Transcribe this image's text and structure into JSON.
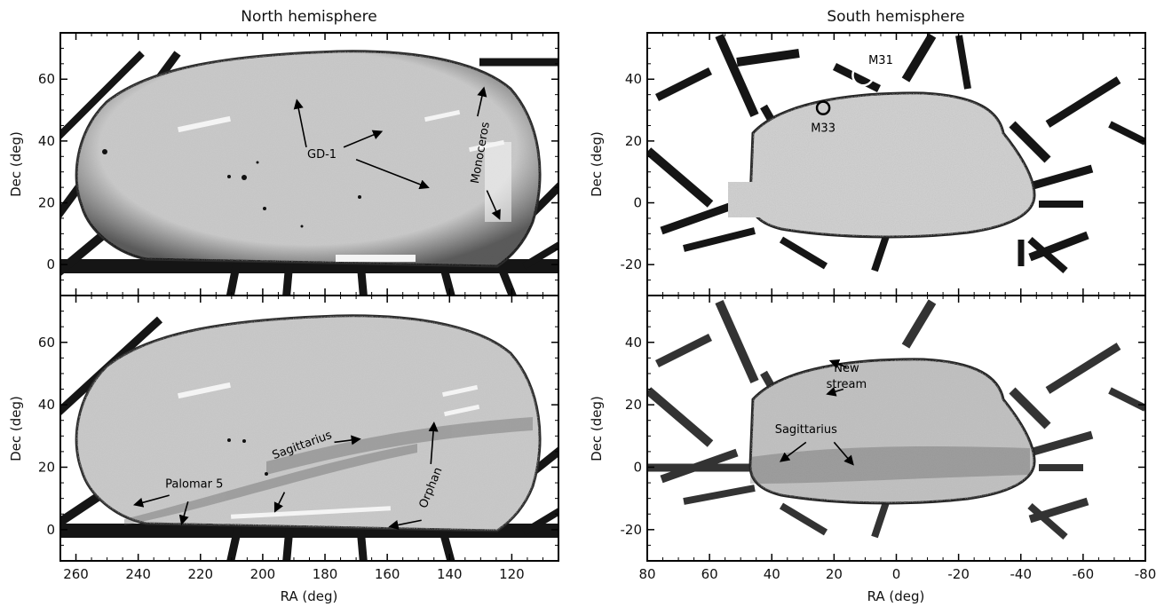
{
  "chart_data": [
    {
      "type": "scatter",
      "panel": "north-top",
      "title": "North hemisphere",
      "xlabel": "",
      "ylabel": "Dec (deg)",
      "xlim": [
        265,
        105
      ],
      "ylim": [
        -10,
        75
      ],
      "xticks": [],
      "yticks": [
        0,
        20,
        40,
        60
      ],
      "grid": false,
      "annotations": [
        {
          "text": "GD-1",
          "x": 181,
          "y": 34.5
        },
        {
          "text": "Monoceros",
          "x": 129,
          "y": 36,
          "rotation": -80
        }
      ],
      "arrows": [
        {
          "from": [
            186,
            38
          ],
          "to": [
            189,
            53
          ]
        },
        {
          "from": [
            174,
            38
          ],
          "to": [
            162,
            43
          ]
        },
        {
          "from": [
            170,
            34
          ],
          "to": [
            147,
            25
          ]
        },
        {
          "from": [
            131,
            48
          ],
          "to": [
            129,
            57
          ]
        },
        {
          "from": [
            128,
            24
          ],
          "to": [
            124,
            15
          ]
        }
      ]
    },
    {
      "type": "scatter",
      "panel": "north-bottom",
      "title": "",
      "xlabel": "RA (deg)",
      "ylabel": "Dec (deg)",
      "xlim": [
        265,
        105
      ],
      "ylim": [
        -10,
        75
      ],
      "xticks": [
        260,
        240,
        220,
        200,
        180,
        160,
        140,
        120
      ],
      "yticks": [
        0,
        20,
        40,
        60
      ],
      "grid": false,
      "annotations": [
        {
          "text": "Palomar 5",
          "x": 222,
          "y": 13.5
        },
        {
          "text": "Sagittarius",
          "x": 187,
          "y": 26,
          "rotation": -20
        },
        {
          "text": "Orphan",
          "x": 145,
          "y": 13,
          "rotation": -68
        }
      ],
      "arrows": [
        {
          "from": [
            230,
            11
          ],
          "to": [
            241,
            8
          ]
        },
        {
          "from": [
            224,
            9
          ],
          "to": [
            226,
            2
          ]
        },
        {
          "from": [
            177,
            28
          ],
          "to": [
            169,
            29
          ]
        },
        {
          "from": [
            193,
            12
          ],
          "to": [
            196,
            6
          ]
        },
        {
          "from": [
            149,
            3
          ],
          "to": [
            159,
            1
          ]
        },
        {
          "from": [
            146,
            21
          ],
          "to": [
            145,
            34
          ]
        }
      ]
    },
    {
      "type": "scatter",
      "panel": "south-top",
      "title": "South hemisphere",
      "xlabel": "",
      "ylabel": "Dec (deg)",
      "xlim": [
        80,
        -80
      ],
      "ylim": [
        -30,
        55
      ],
      "xticks": [],
      "yticks": [
        -20,
        0,
        20,
        40
      ],
      "grid": false,
      "annotations": [
        {
          "text": "M31",
          "x": 5,
          "y": 45
        },
        {
          "text": "M33",
          "x": 23.5,
          "y": 23
        }
      ],
      "markers": [
        {
          "name": "M31",
          "x": 10.7,
          "y": 41.3,
          "radius_deg": 3.3,
          "color": "#ffffff"
        },
        {
          "name": "M33",
          "x": 23.5,
          "y": 30.7,
          "radius_deg": 2.0,
          "color": "#000000"
        }
      ]
    },
    {
      "type": "scatter",
      "panel": "south-bottom",
      "title": "",
      "xlabel": "RA (deg)",
      "ylabel": "Dec (deg)",
      "xlim": [
        80,
        -80
      ],
      "ylim": [
        -30,
        55
      ],
      "xticks": [
        80,
        60,
        40,
        20,
        0,
        -20,
        -40,
        -60,
        -80
      ],
      "xtick_labels": [
        "80",
        "60",
        "40",
        "20",
        "0",
        "-20",
        "-40",
        "-60",
        "-80"
      ],
      "yticks": [
        -20,
        0,
        20,
        40
      ],
      "grid": false,
      "annotations": [
        {
          "text": "New",
          "x": 16,
          "y": 30.5
        },
        {
          "text": "stream",
          "x": 16,
          "y": 25.5
        },
        {
          "text": "Sagittarius",
          "x": 29,
          "y": 11
        }
      ],
      "arrows": [
        {
          "from": [
            16,
            32
          ],
          "to": [
            21,
            34
          ]
        },
        {
          "from": [
            17,
            25
          ],
          "to": [
            22,
            23.5
          ]
        },
        {
          "from": [
            29,
            8
          ],
          "to": [
            37,
            2
          ]
        },
        {
          "from": [
            20,
            8
          ],
          "to": [
            14,
            1
          ]
        }
      ]
    }
  ],
  "colors": {
    "footprint": "#c8c8c8",
    "stripes": "#151515",
    "edge": "#2a2a2a",
    "axes": "#000000"
  }
}
